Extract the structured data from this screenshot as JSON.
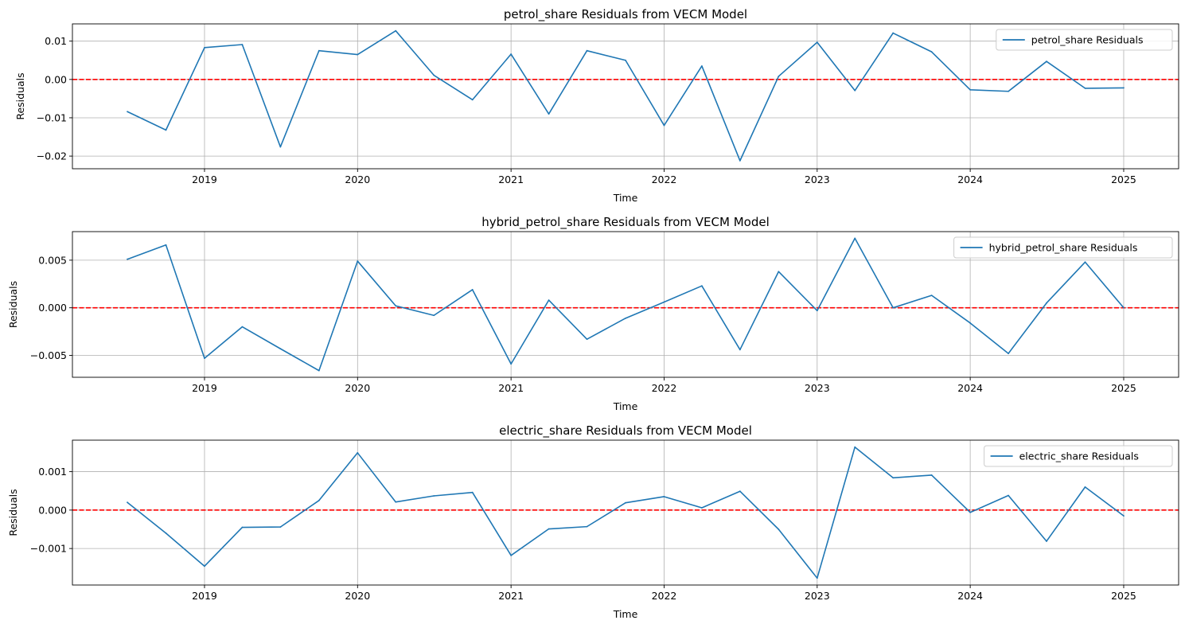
{
  "chart_data": [
    {
      "type": "line",
      "title": "petrol_share Residuals from VECM Model",
      "xlabel": "Time",
      "ylabel": "Residuals",
      "x_ticks": [
        "2019",
        "2020",
        "2021",
        "2022",
        "2023",
        "2024",
        "2025"
      ],
      "y_ticks": [
        "0.01",
        "0.00",
        "−0.01",
        "−0.02"
      ],
      "ylim": [
        -0.0233,
        0.0145
      ],
      "grid": true,
      "legend_position": "top-right",
      "zero_line": {
        "y": 0,
        "color": "#ff0000",
        "style": "dashed"
      },
      "series": [
        {
          "name": "petrol_share Residuals",
          "color": "#1f77b4",
          "x": [
            "2018-07-01",
            "2018-10-01",
            "2019-01-01",
            "2019-04-01",
            "2019-07-01",
            "2019-10-01",
            "2020-01-01",
            "2020-04-01",
            "2020-07-01",
            "2020-10-01",
            "2021-01-01",
            "2021-04-01",
            "2021-07-01",
            "2021-10-01",
            "2022-01-01",
            "2022-04-01",
            "2022-07-01",
            "2022-10-01",
            "2023-01-01",
            "2023-04-01",
            "2023-07-01",
            "2023-10-01",
            "2024-01-01",
            "2024-04-01",
            "2024-07-01",
            "2024-10-01",
            "2025-01-01"
          ],
          "values": [
            -0.0084,
            -0.0132,
            0.0083,
            0.0091,
            -0.0176,
            0.0075,
            0.0065,
            0.0127,
            0.0011,
            -0.0053,
            0.0066,
            -0.009,
            0.0075,
            0.005,
            -0.012,
            0.0035,
            -0.0212,
            0.0008,
            0.0097,
            -0.0029,
            0.0121,
            0.0072,
            -0.0027,
            -0.0031,
            0.0047,
            -0.0023,
            -0.0022
          ]
        }
      ]
    },
    {
      "type": "line",
      "title": "hybrid_petrol_share Residuals from VECM Model",
      "xlabel": "Time",
      "ylabel": "Residuals",
      "x_ticks": [
        "2019",
        "2020",
        "2021",
        "2022",
        "2023",
        "2024",
        "2025"
      ],
      "y_ticks": [
        "0.005",
        "0.000",
        "−0.005"
      ],
      "ylim": [
        -0.0073,
        0.008
      ],
      "grid": true,
      "legend_position": "top-right",
      "zero_line": {
        "y": 0,
        "color": "#ff0000",
        "style": "dashed"
      },
      "series": [
        {
          "name": "hybrid_petrol_share Residuals",
          "color": "#1f77b4",
          "x": [
            "2018-07-01",
            "2018-10-01",
            "2019-01-01",
            "2019-04-01",
            "2019-07-01",
            "2019-10-01",
            "2020-01-01",
            "2020-04-01",
            "2020-07-01",
            "2020-10-01",
            "2021-01-01",
            "2021-04-01",
            "2021-07-01",
            "2021-10-01",
            "2022-01-01",
            "2022-04-01",
            "2022-07-01",
            "2022-10-01",
            "2023-01-01",
            "2023-04-01",
            "2023-07-01",
            "2023-10-01",
            "2024-01-01",
            "2024-04-01",
            "2024-07-01",
            "2024-10-01",
            "2025-01-01"
          ],
          "values": [
            0.0051,
            0.0066,
            -0.0053,
            -0.002,
            -0.0043,
            -0.0066,
            0.0049,
            0.0002,
            -0.0008,
            0.0019,
            -0.0059,
            0.0008,
            -0.0033,
            -0.0011,
            0.0006,
            0.0023,
            -0.0044,
            0.0038,
            -0.0003,
            0.0073,
            0.0,
            0.0013,
            -0.0016,
            -0.0048,
            0.0005,
            0.0048,
            0.0
          ]
        }
      ]
    },
    {
      "type": "line",
      "title": "electric_share Residuals from VECM Model",
      "xlabel": "Time",
      "ylabel": "Residuals",
      "x_ticks": [
        "2019",
        "2020",
        "2021",
        "2022",
        "2023",
        "2024",
        "2025"
      ],
      "y_ticks": [
        "0.001",
        "0.000",
        "−0.001"
      ],
      "ylim": [
        -0.00195,
        0.00182
      ],
      "grid": true,
      "legend_position": "top-right",
      "zero_line": {
        "y": 0,
        "color": "#ff0000",
        "style": "dashed"
      },
      "series": [
        {
          "name": "electric_share Residuals",
          "color": "#1f77b4",
          "x": [
            "2018-07-01",
            "2018-10-01",
            "2019-01-01",
            "2019-04-01",
            "2019-07-01",
            "2019-10-01",
            "2020-01-01",
            "2020-04-01",
            "2020-07-01",
            "2020-10-01",
            "2021-01-01",
            "2021-04-01",
            "2021-07-01",
            "2021-10-01",
            "2022-01-01",
            "2022-04-01",
            "2022-07-01",
            "2022-10-01",
            "2023-01-01",
            "2023-04-01",
            "2023-07-01",
            "2023-10-01",
            "2024-01-01",
            "2024-04-01",
            "2024-07-01",
            "2024-10-01",
            "2025-01-01"
          ],
          "values": [
            0.0002,
            -0.0006,
            -0.00146,
            -0.00045,
            -0.00044,
            0.00025,
            0.00149,
            0.00021,
            0.00037,
            0.00046,
            -0.00118,
            -0.00049,
            -0.00043,
            0.00019,
            0.00035,
            6e-05,
            0.00049,
            -0.0005,
            -0.00177,
            0.00164,
            0.00084,
            0.00091,
            -6e-05,
            0.00038,
            -0.00081,
            0.0006,
            -0.00015
          ]
        }
      ]
    }
  ]
}
